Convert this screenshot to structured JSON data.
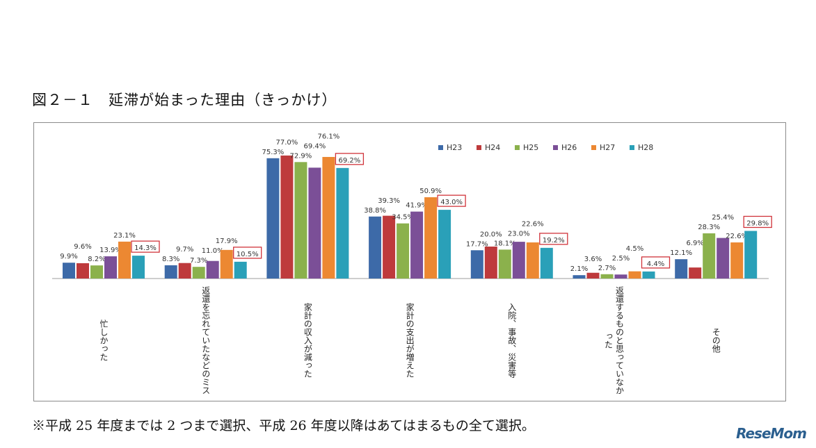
{
  "title": "図２－１　延滞が始まった理由（きっかけ）",
  "footnote": "※平成 25 年度までは 2 つまで選択、平成 26 年度以降はあてはまるもの全て選択。",
  "logo": "ReseMom",
  "chart_data": {
    "type": "bar",
    "title": "",
    "xlabel": "",
    "ylabel": "",
    "ylim": [
      0,
      80
    ],
    "grid": false,
    "legend_position": "top-right",
    "value_suffix": "%",
    "highlighted_series": "H28",
    "categories": [
      "忙しかった",
      "返還を忘れていたなどのミス",
      "家計の収入が減った",
      "家計の支出が増えた",
      "入院、事故、災害等",
      "返還するものと思っていなかった",
      "その他"
    ],
    "series": [
      {
        "name": "H23",
        "color": "#3d6aa8",
        "values": [
          9.9,
          8.3,
          75.3,
          38.8,
          17.7,
          2.1,
          12.1
        ]
      },
      {
        "name": "H24",
        "color": "#be3a3c",
        "values": [
          9.6,
          9.7,
          77.0,
          39.3,
          20.0,
          3.6,
          6.9
        ]
      },
      {
        "name": "H25",
        "color": "#8bb14c",
        "values": [
          8.2,
          7.3,
          72.9,
          34.5,
          18.1,
          2.7,
          28.3
        ]
      },
      {
        "name": "H26",
        "color": "#7b4f97",
        "values": [
          13.9,
          11.0,
          69.4,
          41.9,
          23.0,
          2.5,
          25.4
        ]
      },
      {
        "name": "H27",
        "color": "#ec8832",
        "values": [
          23.1,
          17.9,
          76.1,
          50.9,
          22.6,
          4.5,
          22.6
        ]
      },
      {
        "name": "H28",
        "color": "#2aa0b8",
        "values": [
          14.3,
          10.5,
          69.2,
          43.0,
          19.2,
          4.4,
          29.8
        ]
      }
    ]
  }
}
